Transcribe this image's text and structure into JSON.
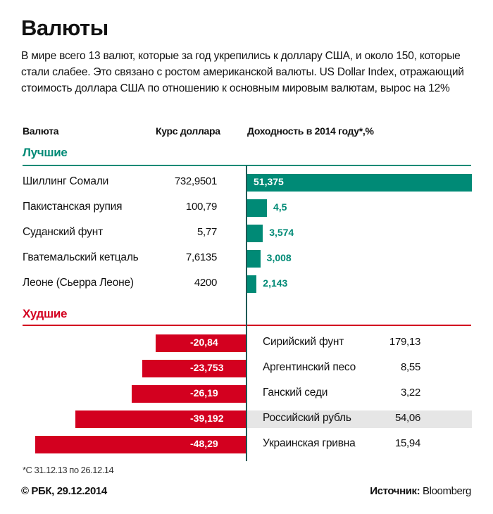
{
  "header": {
    "title": "Валюты",
    "description": "В мире всего 13 валют, которые за год укрепились к доллару США, и около 150, которые стали слабее. Это связано с ростом американской валюты. US Dollar Index, отражающий стоимость доллара США по отношению к основным мировым валютам, вырос на 12%"
  },
  "columns": {
    "currency": "Валюта",
    "rate": "Курс доллара",
    "yield": "Доходность в 2014 году*,%"
  },
  "colors": {
    "best": "#008a76",
    "worst": "#d3001f",
    "highlight": "#e6e6e6"
  },
  "chart_data": {
    "type": "bar",
    "orientation": "horizontal",
    "best": {
      "label": "Лучшие",
      "rows": [
        {
          "name": "Шиллинг Сомали",
          "rate": "732,9501",
          "value": 51.375,
          "label": "51,375"
        },
        {
          "name": "Пакистанская рупия",
          "rate": "100,79",
          "value": 4.5,
          "label": "4,5"
        },
        {
          "name": "Суданский фунт",
          "rate": "5,77",
          "value": 3.574,
          "label": "3,574"
        },
        {
          "name": "Гватемальский кетцаль",
          "rate": "7,6135",
          "value": 3.008,
          "label": "3,008"
        },
        {
          "name": "Леоне (Сьерра Леоне)",
          "rate": "4200",
          "value": 2.143,
          "label": "2,143"
        }
      ]
    },
    "worst": {
      "label": "Худшие",
      "rows": [
        {
          "name": "Сирийский фунт",
          "rate": "179,13",
          "value": -20.84,
          "label": "-20,84"
        },
        {
          "name": "Аргентинский песо",
          "rate": "8,55",
          "value": -23.753,
          "label": "-23,753"
        },
        {
          "name": "Ганский седи",
          "rate": "3,22",
          "value": -26.19,
          "label": "-26,19"
        },
        {
          "name": "Российский рубль",
          "rate": "54,06",
          "value": -39.192,
          "label": "-39,192",
          "highlighted": true
        },
        {
          "name": "Украинская гривна",
          "rate": "15,94",
          "value": -48.29,
          "label": "-48,29"
        }
      ]
    }
  },
  "footer": {
    "footnote": "*С 31.12.13 по 26.12.14",
    "copyright": "© РБК, 29.12.2014",
    "source_label": "Источник:",
    "source": "Bloomberg"
  }
}
